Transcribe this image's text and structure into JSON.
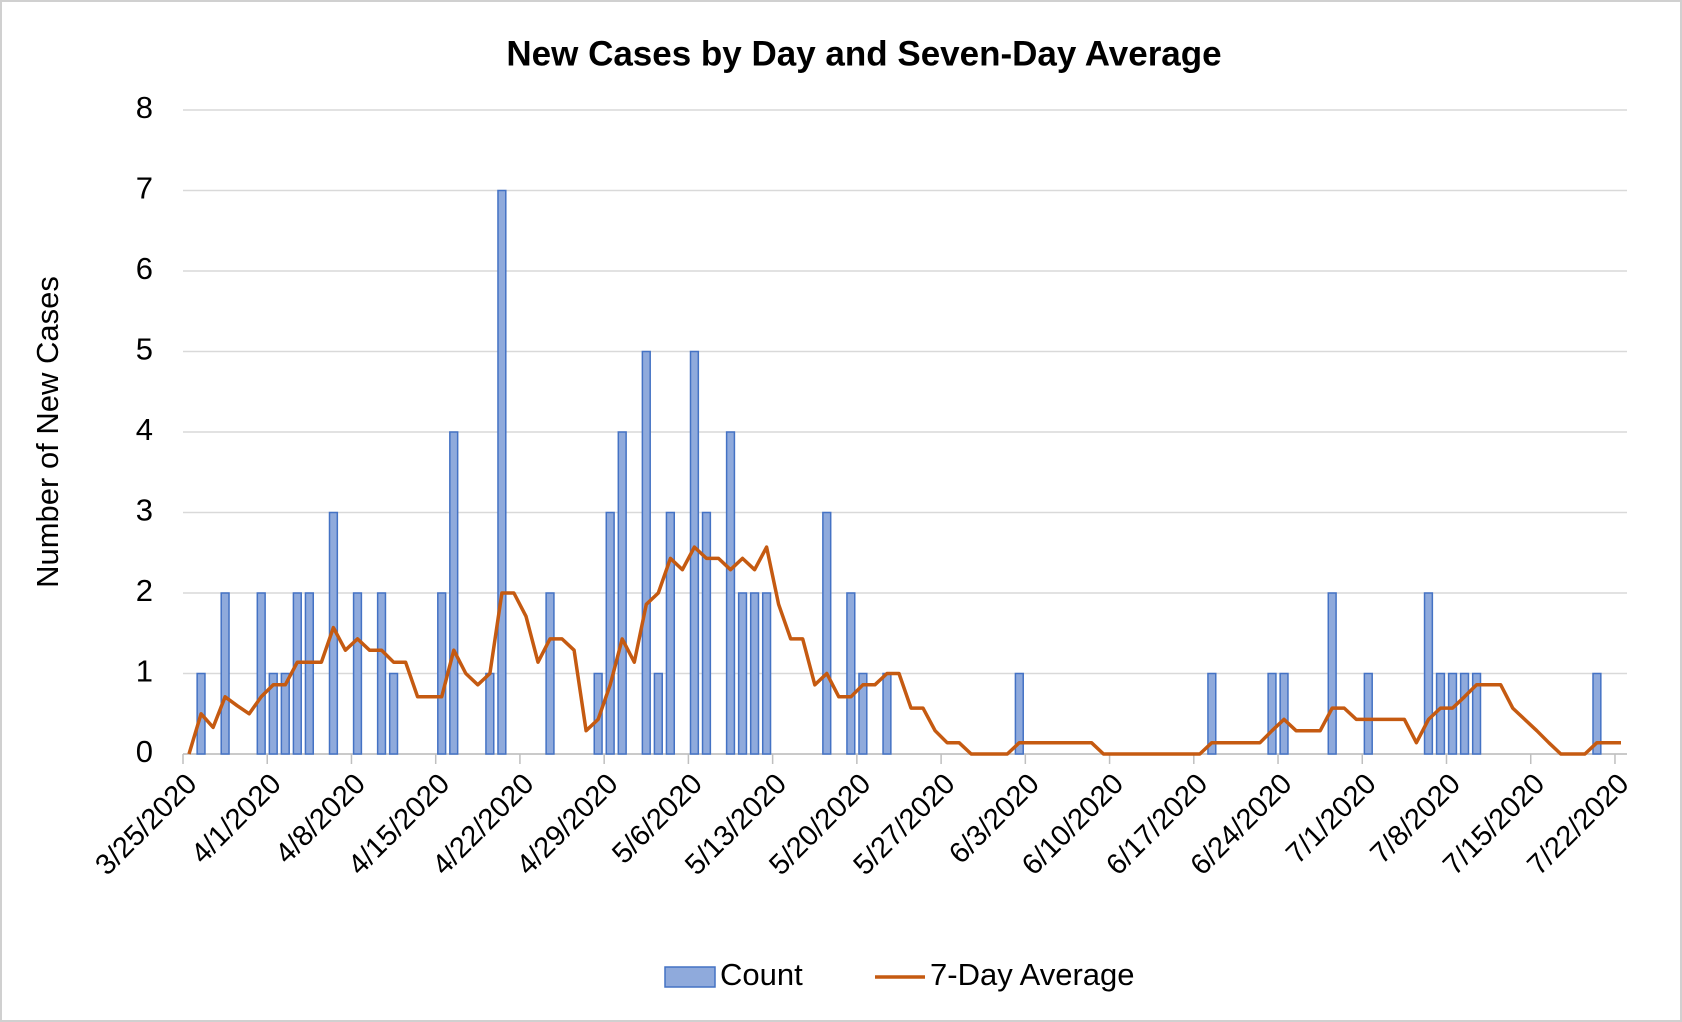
{
  "chart_data": {
    "type": "bar",
    "title": "New Cases by Day and Seven-Day Average",
    "y_label": "Number of New Cases",
    "categories": [
      "3/25/2020",
      null,
      null,
      null,
      null,
      null,
      null,
      "4/1/2020",
      null,
      null,
      null,
      null,
      null,
      null,
      "4/8/2020",
      null,
      null,
      null,
      null,
      null,
      null,
      "4/15/2020",
      null,
      null,
      null,
      null,
      null,
      null,
      "4/22/2020",
      null,
      null,
      null,
      null,
      null,
      null,
      "4/29/2020",
      null,
      null,
      null,
      null,
      null,
      null,
      "5/6/2020",
      null,
      null,
      null,
      null,
      null,
      null,
      "5/13/2020",
      null,
      null,
      null,
      null,
      null,
      null,
      "5/20/2020",
      null,
      null,
      null,
      null,
      null,
      null,
      "5/27/2020",
      null,
      null,
      null,
      null,
      null,
      null,
      "6/3/2020",
      null,
      null,
      null,
      null,
      null,
      null,
      "6/10/2020",
      null,
      null,
      null,
      null,
      null,
      null,
      "6/17/2020",
      null,
      null,
      null,
      null,
      null,
      null,
      "6/24/2020",
      null,
      null,
      null,
      null,
      null,
      null,
      "7/1/2020",
      null,
      null,
      null,
      null,
      null,
      null,
      "7/8/2020",
      null,
      null,
      null,
      null,
      null,
      null,
      "7/15/2020",
      null,
      null,
      null,
      null,
      null,
      null,
      "7/22/2020"
    ],
    "series": [
      {
        "name": "Count",
        "type": "bar",
        "color": "#8faadc",
        "edge_color": "#4472c4",
        "values": [
          0,
          1,
          0,
          2,
          0,
          0,
          2,
          1,
          1,
          2,
          2,
          0,
          3,
          0,
          2,
          0,
          2,
          1,
          0,
          0,
          0,
          2,
          4,
          0,
          0,
          1,
          7,
          0,
          0,
          0,
          2,
          0,
          0,
          0,
          1,
          3,
          4,
          0,
          5,
          1,
          3,
          0,
          5,
          3,
          0,
          4,
          2,
          2,
          2,
          0,
          0,
          0,
          0,
          3,
          0,
          2,
          1,
          0,
          1,
          0,
          0,
          0,
          0,
          0,
          0,
          0,
          0,
          0,
          0,
          1,
          0,
          0,
          0,
          0,
          0,
          0,
          0,
          0,
          0,
          0,
          0,
          0,
          0,
          0,
          0,
          1,
          0,
          0,
          0,
          0,
          1,
          1,
          0,
          0,
          0,
          2,
          0,
          0,
          1,
          0,
          0,
          0,
          0,
          2,
          1,
          1,
          1,
          1,
          0,
          0,
          0,
          0,
          0,
          0,
          0,
          0,
          0,
          1,
          0,
          0
        ]
      },
      {
        "name": "7-Day Average",
        "type": "line",
        "color": "#c55a11",
        "values": [
          0,
          0.5,
          0.33,
          0.71,
          0.6,
          0.5,
          0.71,
          0.86,
          0.86,
          1.14,
          1.14,
          1.14,
          1.57,
          1.29,
          1.43,
          1.29,
          1.29,
          1.14,
          1.14,
          0.71,
          0.71,
          0.71,
          1.29,
          1.0,
          0.86,
          1.0,
          2.0,
          2.0,
          1.71,
          1.14,
          1.43,
          1.43,
          1.29,
          0.29,
          0.43,
          0.86,
          1.43,
          1.14,
          1.86,
          2.0,
          2.43,
          2.29,
          2.57,
          2.43,
          2.43,
          2.29,
          2.43,
          2.29,
          2.57,
          1.86,
          1.43,
          1.43,
          0.86,
          1.0,
          0.71,
          0.71,
          0.86,
          0.86,
          1.0,
          1.0,
          0.57,
          0.57,
          0.29,
          0.14,
          0.14,
          0,
          0,
          0,
          0,
          0.14,
          0.14,
          0.14,
          0.14,
          0.14,
          0.14,
          0.14,
          0,
          0,
          0,
          0,
          0,
          0,
          0,
          0,
          0,
          0.14,
          0.14,
          0.14,
          0.14,
          0.14,
          0.29,
          0.43,
          0.29,
          0.29,
          0.29,
          0.57,
          0.57,
          0.43,
          0.43,
          0.43,
          0.43,
          0.43,
          0.14,
          0.43,
          0.57,
          0.57,
          0.71,
          0.86,
          0.86,
          0.86,
          0.57,
          0.43,
          0.29,
          0.14,
          0,
          0,
          0,
          0.14,
          0.14,
          0.14
        ]
      }
    ],
    "ylim": [
      0,
      8
    ],
    "yticks": [
      0,
      1,
      2,
      3,
      4,
      5,
      6,
      7,
      8
    ],
    "grid": true,
    "legend": "bottom"
  }
}
